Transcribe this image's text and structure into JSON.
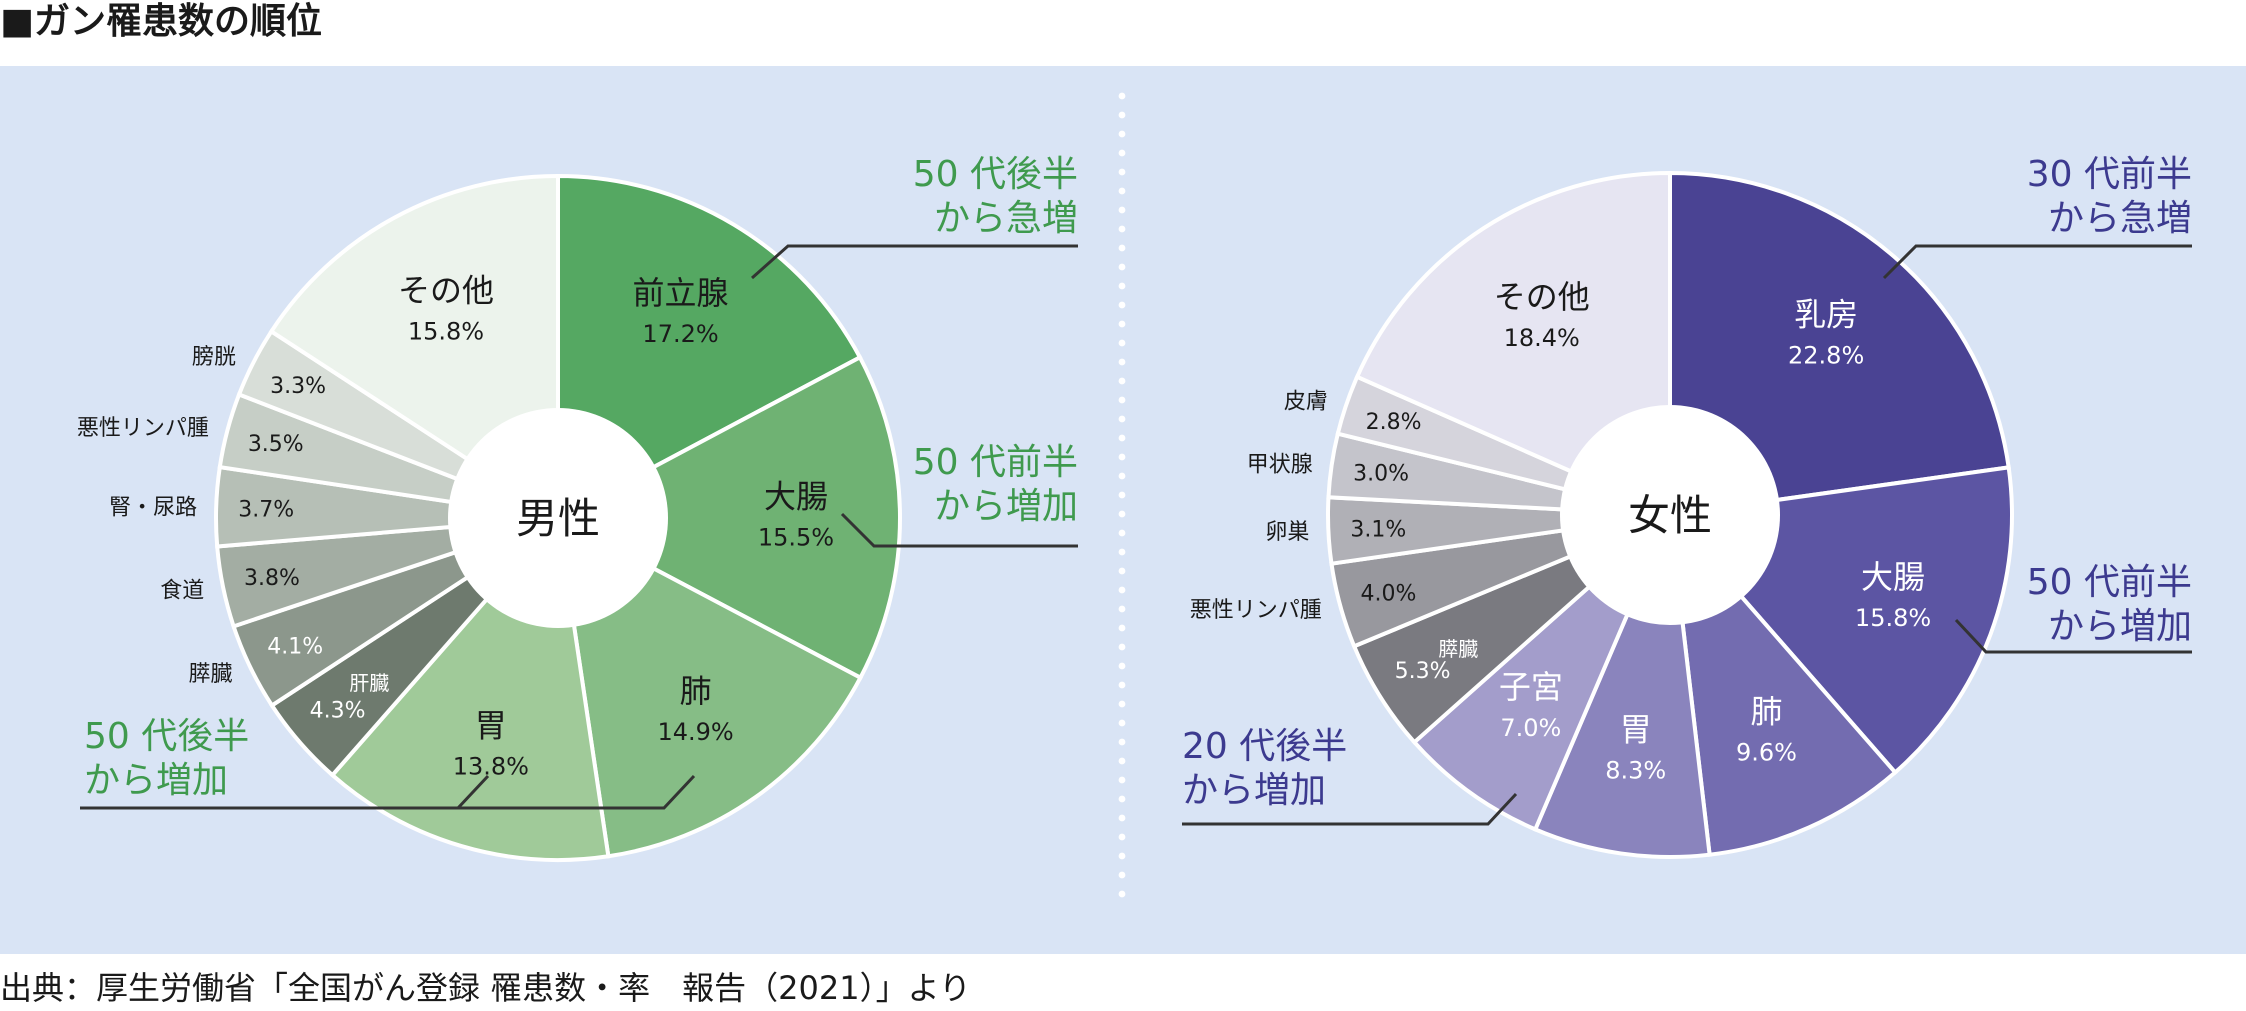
{
  "title": "■ガン罹患数の順位",
  "source": "出典：厚生労働省「全国がん登録 罹患数・率　報告（2021）」より",
  "chart_data": [
    {
      "type": "pie",
      "center_label": "男性",
      "categories": [
        "前立腺",
        "大腸",
        "肺",
        "胃",
        "肝臓",
        "膵臓",
        "食道",
        "腎・尿路",
        "悪性リンパ腫",
        "膀胱",
        "その他"
      ],
      "values": [
        17.2,
        15.5,
        14.9,
        13.8,
        4.3,
        4.1,
        3.8,
        3.7,
        3.5,
        3.3,
        15.8
      ],
      "value_labels": [
        "17.2%",
        "15.5%",
        "14.9%",
        "13.8%",
        "4.3%",
        "4.1%",
        "3.8%",
        "3.7%",
        "3.5%",
        "3.3%",
        "15.8%"
      ],
      "colors": [
        "#55a862",
        "#6fb273",
        "#86bd86",
        "#a0ca99",
        "#6e7a6e",
        "#8c978c",
        "#a3ada3",
        "#b6bfb6",
        "#c6cec6",
        "#d8ded8",
        "#ecf3ec"
      ],
      "annotations": [
        {
          "line1": "50 代後半",
          "line2": "から急増"
        },
        {
          "line1": "50 代前半",
          "line2": "から増加"
        },
        {
          "line1": "50 代後半",
          "line2": "から増加"
        }
      ],
      "annotation_color": "#3f9a4e"
    },
    {
      "type": "pie",
      "center_label": "女性",
      "categories": [
        "乳房",
        "大腸",
        "肺",
        "胃",
        "子宮",
        "膵臓",
        "悪性リンパ腫",
        "卵巣",
        "甲状腺",
        "皮膚",
        "その他"
      ],
      "values": [
        22.8,
        15.8,
        9.6,
        8.3,
        7.0,
        5.3,
        4.0,
        3.1,
        3.0,
        2.8,
        18.4
      ],
      "value_labels": [
        "22.8%",
        "15.8%",
        "9.6%",
        "8.3%",
        "7.0%",
        "5.3%",
        "4.0%",
        "3.1%",
        "3.0%",
        "2.8%",
        "18.4%"
      ],
      "colors": [
        "#4a4393",
        "#5c55a3",
        "#736cb0",
        "#8a84bd",
        "#a39dcb",
        "#7a7a80",
        "#98989e",
        "#b0b0b6",
        "#c4c4cb",
        "#d5d4dc",
        "#e6e5f2"
      ],
      "annotations": [
        {
          "line1": "30 代前半",
          "line2": "から急増"
        },
        {
          "line1": "50 代前半",
          "line2": "から増加"
        },
        {
          "line1": "20 代後半",
          "line2": "から増加"
        }
      ],
      "annotation_color": "#3c3a8f"
    }
  ]
}
